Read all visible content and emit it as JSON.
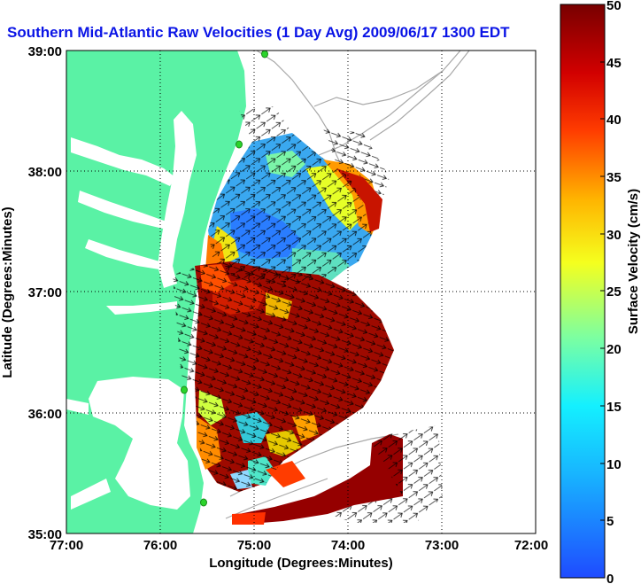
{
  "title": "Southern Mid-Atlantic Raw Velocities (1 Day Avg) 2009/06/17 1300 EDT",
  "map": {
    "xlabel": "Longitude (Degrees:Minutes)",
    "ylabel": "Latitude (Degrees:Minutes)",
    "x_ticks": [
      "77:00",
      "76:00",
      "75:00",
      "74:00",
      "73:00",
      "72:00"
    ],
    "y_ticks": [
      "39:00",
      "38:00",
      "37:00",
      "36:00",
      "35:00"
    ],
    "lon_range": [
      -77,
      -72
    ],
    "lat_range": [
      35,
      39
    ],
    "grid": "dotted",
    "land_color": "#5af2a5",
    "water_color": "#ffffff",
    "station_color": "#2bd42b"
  },
  "colorbar": {
    "label": "Surface Velocity (cm/s)",
    "ticks": [
      "50",
      "45",
      "40",
      "35",
      "30",
      "25",
      "20",
      "15",
      "10",
      "5",
      "0"
    ],
    "range": [
      0,
      50
    ],
    "colormap": "jet-dark"
  }
}
